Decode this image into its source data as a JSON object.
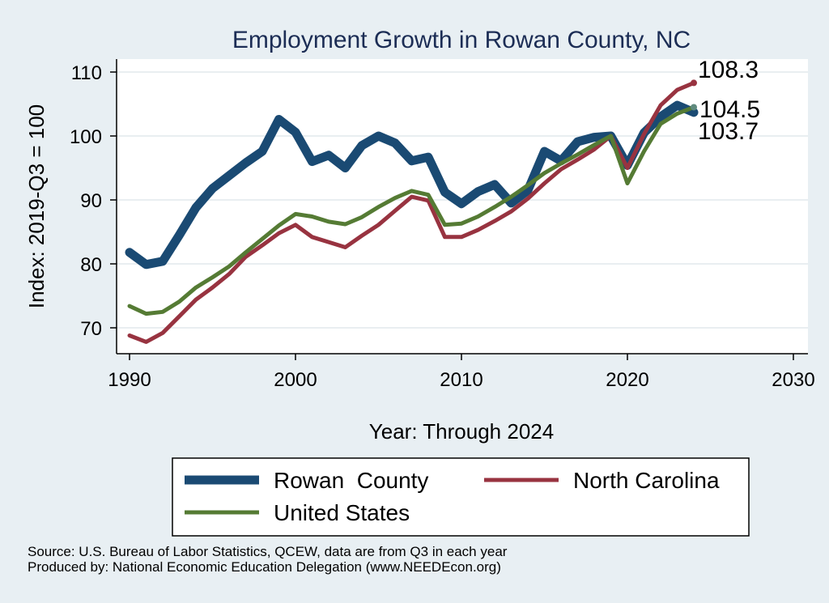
{
  "chart_data": {
    "type": "line",
    "title": "Employment Growth in Rowan County, NC",
    "xlabel": "Year: Through 2024",
    "ylabel": "Index: 2019-Q3 = 100",
    "xlim": [
      1990,
      2030
    ],
    "ylim": [
      65,
      112
    ],
    "xticks": [
      1990,
      2000,
      2010,
      2020,
      2030
    ],
    "yticks": [
      70,
      80,
      90,
      100,
      110
    ],
    "grid": true,
    "legend_position": "bottom",
    "x": [
      1990,
      1991,
      1992,
      1993,
      1994,
      1995,
      1996,
      1997,
      1998,
      1999,
      2000,
      2001,
      2002,
      2003,
      2004,
      2005,
      2006,
      2007,
      2008,
      2009,
      2010,
      2011,
      2012,
      2013,
      2014,
      2015,
      2016,
      2017,
      2018,
      2019,
      2020,
      2021,
      2022,
      2023,
      2024
    ],
    "series": [
      {
        "name": "Rowan  County",
        "color": "#1a4a73",
        "end_label": "103.7",
        "values": [
          81.8,
          79.9,
          80.4,
          84.5,
          88.8,
          91.8,
          93.8,
          95.8,
          97.6,
          102.6,
          100.6,
          96.0,
          97.0,
          95.0,
          98.5,
          100.0,
          98.9,
          96.1,
          96.7,
          91.2,
          89.4,
          91.3,
          92.4,
          89.5,
          91.5,
          97.6,
          96.1,
          99.1,
          99.8,
          100.0,
          95.4,
          100.5,
          103.0,
          104.8,
          103.7
        ]
      },
      {
        "name": "North Carolina",
        "color": "#983340",
        "end_label": "108.3",
        "values": [
          68.8,
          67.8,
          69.2,
          71.8,
          74.4,
          76.3,
          78.4,
          81.1,
          82.9,
          84.8,
          86.1,
          84.2,
          83.4,
          82.6,
          84.4,
          86.1,
          88.3,
          90.5,
          89.9,
          84.2,
          84.2,
          85.3,
          86.7,
          88.2,
          90.2,
          92.6,
          94.8,
          96.3,
          97.9,
          100.0,
          95.0,
          100.3,
          104.8,
          107.2,
          108.3
        ]
      },
      {
        "name": "United States",
        "color": "#557b34",
        "end_label": "104.5",
        "values": [
          73.4,
          72.2,
          72.5,
          74.1,
          76.3,
          77.9,
          79.6,
          81.8,
          83.9,
          86.0,
          87.8,
          87.4,
          86.6,
          86.2,
          87.3,
          88.9,
          90.3,
          91.4,
          90.8,
          86.1,
          86.3,
          87.4,
          88.9,
          90.5,
          92.3,
          94.2,
          95.7,
          97.1,
          98.6,
          100.0,
          92.6,
          97.6,
          101.9,
          103.5,
          104.5
        ]
      }
    ]
  },
  "legend": {
    "items": [
      "Rowan  County",
      "North Carolina",
      "United States"
    ]
  },
  "source": {
    "line1": "Source: U.S. Bureau of Labor Statistics, QCEW, data are from Q3 in each year",
    "line2": "Produced by: National Economic Education Delegation (www.NEEDEcon.org)"
  }
}
